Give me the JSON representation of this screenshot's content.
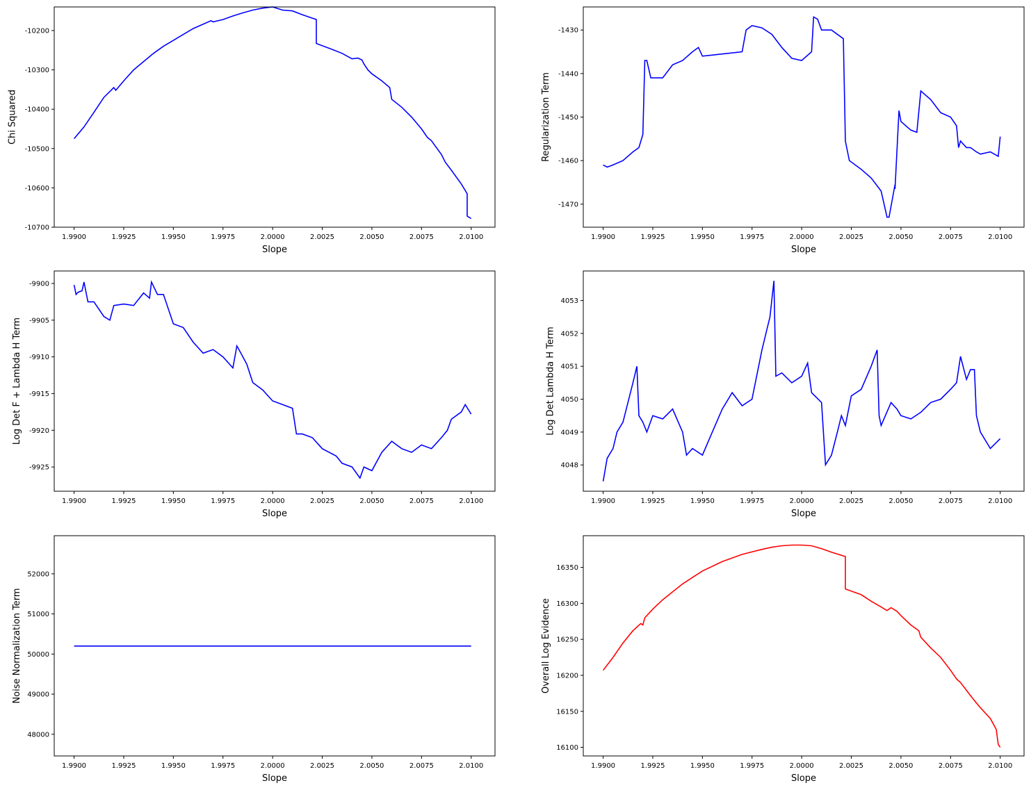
{
  "chart_data": [
    {
      "type": "line",
      "xlabel": "Slope",
      "ylabel": "Chi Squared",
      "xlim": [
        1.989,
        2.0112
      ],
      "ylim": [
        -10700,
        -10140
      ],
      "xticks": [
        "1.9900",
        "1.9925",
        "1.9950",
        "1.9975",
        "2.0000",
        "2.0025",
        "2.0050",
        "2.0075",
        "2.0100"
      ],
      "yticks": [
        "-10700",
        "-10600",
        "-10500",
        "-10400",
        "-10300",
        "-10200"
      ],
      "color": "#0000ff",
      "series": [
        {
          "x": [
            1.99,
            1.9905,
            1.991,
            1.9915,
            1.9919,
            1.992,
            1.9921,
            1.9925,
            1.993,
            1.994,
            1.9945,
            1.995,
            1.996,
            1.9969,
            1.997,
            1.9975,
            1.998,
            1.9985,
            1.999,
            1.9995,
            2.0,
            2.0005,
            2.001,
            2.0015,
            2.0022,
            2.0022,
            2.003,
            2.0035,
            2.004,
            2.0043,
            2.0045,
            2.0046,
            2.0048,
            2.005,
            2.0055,
            2.0059,
            2.006,
            2.0065,
            2.007,
            2.0075,
            2.0078,
            2.008,
            2.0085,
            2.0087,
            2.009,
            2.0095,
            2.0098,
            2.0098,
            2.01
          ],
          "y": [
            -10475,
            -10445,
            -10408,
            -10370,
            -10350,
            -10345,
            -10352,
            -10328,
            -10300,
            -10258,
            -10240,
            -10225,
            -10195,
            -10175,
            -10178,
            -10172,
            -10163,
            -10155,
            -10148,
            -10143,
            -10140,
            -10148,
            -10150,
            -10160,
            -10172,
            -10233,
            -10248,
            -10258,
            -10272,
            -10270,
            -10275,
            -10285,
            -10300,
            -10310,
            -10328,
            -10345,
            -10375,
            -10395,
            -10420,
            -10450,
            -10472,
            -10480,
            -10515,
            -10535,
            -10555,
            -10590,
            -10615,
            -10672,
            -10678
          ]
        }
      ]
    },
    {
      "type": "line",
      "xlabel": "Slope",
      "ylabel": "Regularization Term",
      "xlim": [
        1.989,
        2.0112
      ],
      "ylim": [
        -1475.3,
        -1424.7
      ],
      "xticks": [
        "1.9900",
        "1.9925",
        "1.9950",
        "1.9975",
        "2.0000",
        "2.0025",
        "2.0050",
        "2.0075",
        "2.0100"
      ],
      "yticks": [
        "-1470",
        "-1460",
        "-1450",
        "-1440",
        "-1430"
      ],
      "color": "#0000ff",
      "series": [
        {
          "x": [
            1.99,
            1.9902,
            1.9905,
            1.991,
            1.9915,
            1.9918,
            1.992,
            1.9921,
            1.9922,
            1.9924,
            1.9926,
            1.993,
            1.9935,
            1.994,
            1.9945,
            1.9948,
            1.995,
            1.996,
            1.997,
            1.9972,
            1.9975,
            1.998,
            1.9985,
            1.999,
            1.9995,
            2.0,
            2.0005,
            2.0006,
            2.0008,
            2.001,
            2.0015,
            2.0021,
            2.0022,
            2.0024,
            2.003,
            2.0035,
            2.004,
            2.0042,
            2.0043,
            2.0044,
            2.0047,
            2.0047,
            2.0049,
            2.005,
            2.0055,
            2.0058,
            2.006,
            2.0065,
            2.007,
            2.0075,
            2.0078,
            2.0079,
            2.008,
            2.0083,
            2.0085,
            2.0088,
            2.009,
            2.0095,
            2.0099,
            2.01
          ],
          "y": [
            -1461,
            -1461.5,
            -1461,
            -1460,
            -1458,
            -1457,
            -1454,
            -1437,
            -1437,
            -1441,
            -1441,
            -1441,
            -1438,
            -1437,
            -1435,
            -1434,
            -1436,
            -1435.5,
            -1435,
            -1430,
            -1429,
            -1429.5,
            -1431,
            -1434,
            -1436.5,
            -1437,
            -1435,
            -1427,
            -1427.5,
            -1430,
            -1430,
            -1432,
            -1455.5,
            -1460,
            -1462,
            -1464,
            -1467,
            -1471,
            -1473,
            -1473,
            -1465.5,
            -1466.5,
            -1448.5,
            -1451,
            -1453,
            -1453.5,
            -1444,
            -1446,
            -1449,
            -1450,
            -1452,
            -1457,
            -1455.5,
            -1457,
            -1457,
            -1458,
            -1458.5,
            -1458,
            -1459,
            -1454.5
          ]
        }
      ]
    },
    {
      "type": "line",
      "xlabel": "Slope",
      "ylabel": "Log Det F + Lambda H Term",
      "xlim": [
        1.989,
        2.0112
      ],
      "ylim": [
        -9928.3,
        -9898.3
      ],
      "xticks": [
        "1.9900",
        "1.9925",
        "1.9950",
        "1.9975",
        "2.0000",
        "2.0025",
        "2.0050",
        "2.0075",
        "2.0100"
      ],
      "yticks": [
        "-9925",
        "-9920",
        "-9915",
        "-9910",
        "-9905",
        "-9900"
      ],
      "color": "#0000ff",
      "series": [
        {
          "x": [
            1.99,
            1.9901,
            1.9902,
            1.9904,
            1.9905,
            1.9907,
            1.991,
            1.9915,
            1.9918,
            1.992,
            1.9925,
            1.993,
            1.9935,
            1.9938,
            1.9939,
            1.9942,
            1.9945,
            1.995,
            1.9955,
            1.996,
            1.9965,
            1.997,
            1.9975,
            1.998,
            1.9982,
            1.9984,
            1.9987,
            1.999,
            1.9995,
            2.0,
            2.0005,
            2.001,
            2.0012,
            2.0015,
            2.002,
            2.0025,
            2.0032,
            2.0035,
            2.004,
            2.0044,
            2.0046,
            2.005,
            2.0055,
            2.006,
            2.0065,
            2.007,
            2.0075,
            2.008,
            2.0085,
            2.0088,
            2.009,
            2.0095,
            2.0097,
            2.01
          ],
          "y": [
            -9900.2,
            -9901.5,
            -9901.2,
            -9901,
            -9899.8,
            -9902.5,
            -9902.5,
            -9904.5,
            -9905,
            -9903,
            -9902.8,
            -9903,
            -9901.3,
            -9902,
            -9899.8,
            -9901.5,
            -9901.5,
            -9905.5,
            -9906,
            -9908,
            -9909.5,
            -9909,
            -9910,
            -9911.5,
            -9908.5,
            -9909.5,
            -9911,
            -9913.5,
            -9914.5,
            -9916,
            -9916.5,
            -9917,
            -9920.5,
            -9920.5,
            -9921,
            -9922.5,
            -9923.5,
            -9924.5,
            -9925,
            -9926.5,
            -9925,
            -9925.5,
            -9923,
            -9921.5,
            -9922.5,
            -9923,
            -9922,
            -9922.5,
            -9921,
            -9920,
            -9918.5,
            -9917.5,
            -9916.5,
            -9917.8
          ]
        }
      ]
    },
    {
      "type": "line",
      "xlabel": "Slope",
      "ylabel": "Log Det Lambda H Term",
      "xlim": [
        1.989,
        2.0112
      ],
      "ylim": [
        4047.2,
        4053.9
      ],
      "xticks": [
        "1.9900",
        "1.9925",
        "1.9950",
        "1.9975",
        "2.0000",
        "2.0025",
        "2.0050",
        "2.0075",
        "2.0100"
      ],
      "yticks": [
        "4048",
        "4049",
        "4050",
        "4051",
        "4052",
        "4053"
      ],
      "color": "#0000ff",
      "series": [
        {
          "x": [
            1.99,
            1.9902,
            1.9905,
            1.9907,
            1.991,
            1.9915,
            1.9917,
            1.9918,
            1.992,
            1.9922,
            1.9925,
            1.993,
            1.9935,
            1.994,
            1.9942,
            1.9945,
            1.995,
            1.9955,
            1.996,
            1.9965,
            1.997,
            1.9975,
            1.998,
            1.9982,
            1.9984,
            1.9986,
            1.9987,
            1.999,
            1.9995,
            2.0,
            2.0003,
            2.0005,
            2.001,
            2.0012,
            2.0015,
            2.0018,
            2.002,
            2.0022,
            2.0025,
            2.003,
            2.0035,
            2.0038,
            2.0039,
            2.004,
            2.0045,
            2.0048,
            2.005,
            2.0055,
            2.006,
            2.0065,
            2.007,
            2.0075,
            2.0078,
            2.008,
            2.0083,
            2.0085,
            2.0087,
            2.0088,
            2.009,
            2.0095,
            2.01
          ],
          "y": [
            4047.5,
            4048.2,
            4048.5,
            4049,
            4049.3,
            4050.5,
            4051,
            4049.5,
            4049.3,
            4049,
            4049.5,
            4049.4,
            4049.7,
            4049,
            4048.3,
            4048.5,
            4048.3,
            4049,
            4049.7,
            4050.2,
            4049.8,
            4050,
            4051.5,
            4052,
            4052.5,
            4053.6,
            4050.7,
            4050.8,
            4050.5,
            4050.7,
            4051.1,
            4050.2,
            4049.9,
            4048,
            4048.3,
            4049,
            4049.5,
            4049.2,
            4050.1,
            4050.3,
            4051,
            4051.5,
            4049.5,
            4049.2,
            4049.9,
            4049.7,
            4049.5,
            4049.4,
            4049.6,
            4049.9,
            4050,
            4050.3,
            4050.5,
            4051.3,
            4050.6,
            4050.9,
            4050.9,
            4049.5,
            4049,
            4048.5,
            4048.8
          ]
        }
      ]
    },
    {
      "type": "line",
      "xlabel": "Slope",
      "ylabel": "Noise Normalization Term",
      "xlim": [
        1.989,
        2.0112
      ],
      "ylim": [
        47460,
        52950
      ],
      "xticks": [
        "1.9900",
        "1.9925",
        "1.9950",
        "1.9975",
        "2.0000",
        "2.0025",
        "2.0050",
        "2.0075",
        "2.0100"
      ],
      "yticks": [
        "48000",
        "49000",
        "50000",
        "51000",
        "52000"
      ],
      "color": "#0000ff",
      "series": [
        {
          "x": [
            1.99,
            2.01
          ],
          "y": [
            50200,
            50200
          ]
        }
      ]
    },
    {
      "type": "line",
      "xlabel": "Slope",
      "ylabel": "Overall Log Evidence",
      "xlim": [
        1.989,
        2.0112
      ],
      "ylim": [
        16088,
        16394
      ],
      "xticks": [
        "1.9900",
        "1.9925",
        "1.9950",
        "1.9975",
        "2.0000",
        "2.0025",
        "2.0050",
        "2.0075",
        "2.0100"
      ],
      "yticks": [
        "16100",
        "16150",
        "16200",
        "16250",
        "16300",
        "16350"
      ],
      "color": "#ff0000",
      "series": [
        {
          "x": [
            1.99,
            1.9905,
            1.991,
            1.9915,
            1.9919,
            1.992,
            1.9921,
            1.9925,
            1.993,
            1.994,
            1.9945,
            1.995,
            1.996,
            1.997,
            1.998,
            1.9985,
            1.999,
            1.9995,
            2.0,
            2.0005,
            2.001,
            2.0015,
            2.0022,
            2.0022,
            2.003,
            2.0035,
            2.004,
            2.0043,
            2.0045,
            2.0048,
            2.005,
            2.0055,
            2.0059,
            2.006,
            2.0065,
            2.007,
            2.0075,
            2.0078,
            2.008,
            2.0085,
            2.0087,
            2.009,
            2.0095,
            2.0098,
            2.0099,
            2.01
          ],
          "y": [
            16207,
            16225,
            16245,
            16262,
            16272,
            16270,
            16280,
            16292,
            16305,
            16327,
            16336,
            16345,
            16358,
            16368,
            16375,
            16378,
            16380,
            16381,
            16381,
            16380,
            16376,
            16371,
            16365,
            16320,
            16312,
            16303,
            16295,
            16290,
            16294,
            16289,
            16283,
            16270,
            16262,
            16253,
            16238,
            16225,
            16207,
            16195,
            16190,
            16172,
            16165,
            16155,
            16140,
            16125,
            16104,
            16100
          ]
        }
      ]
    }
  ]
}
